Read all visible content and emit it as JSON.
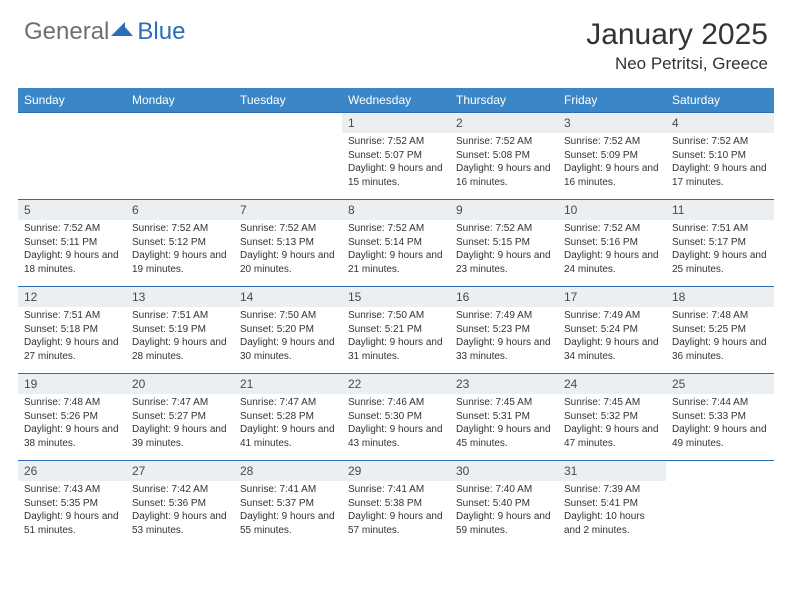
{
  "logo": {
    "part1": "General",
    "part2": "Blue"
  },
  "title": "January 2025",
  "location": "Neo Petritsi, Greece",
  "colors": {
    "header_bg": "#3b86c7",
    "row_border": "#2a6db8",
    "daynum_bg": "#eceff1",
    "text": "#333333",
    "logo_gray": "#6f6f6f",
    "logo_blue": "#2a6db8"
  },
  "days_of_week": [
    "Sunday",
    "Monday",
    "Tuesday",
    "Wednesday",
    "Thursday",
    "Friday",
    "Saturday"
  ],
  "weeks": [
    [
      null,
      null,
      null,
      {
        "n": "1",
        "sr": "7:52 AM",
        "ss": "5:07 PM",
        "dl": "9 hours and 15 minutes."
      },
      {
        "n": "2",
        "sr": "7:52 AM",
        "ss": "5:08 PM",
        "dl": "9 hours and 16 minutes."
      },
      {
        "n": "3",
        "sr": "7:52 AM",
        "ss": "5:09 PM",
        "dl": "9 hours and 16 minutes."
      },
      {
        "n": "4",
        "sr": "7:52 AM",
        "ss": "5:10 PM",
        "dl": "9 hours and 17 minutes."
      }
    ],
    [
      {
        "n": "5",
        "sr": "7:52 AM",
        "ss": "5:11 PM",
        "dl": "9 hours and 18 minutes."
      },
      {
        "n": "6",
        "sr": "7:52 AM",
        "ss": "5:12 PM",
        "dl": "9 hours and 19 minutes."
      },
      {
        "n": "7",
        "sr": "7:52 AM",
        "ss": "5:13 PM",
        "dl": "9 hours and 20 minutes."
      },
      {
        "n": "8",
        "sr": "7:52 AM",
        "ss": "5:14 PM",
        "dl": "9 hours and 21 minutes."
      },
      {
        "n": "9",
        "sr": "7:52 AM",
        "ss": "5:15 PM",
        "dl": "9 hours and 23 minutes."
      },
      {
        "n": "10",
        "sr": "7:52 AM",
        "ss": "5:16 PM",
        "dl": "9 hours and 24 minutes."
      },
      {
        "n": "11",
        "sr": "7:51 AM",
        "ss": "5:17 PM",
        "dl": "9 hours and 25 minutes."
      }
    ],
    [
      {
        "n": "12",
        "sr": "7:51 AM",
        "ss": "5:18 PM",
        "dl": "9 hours and 27 minutes."
      },
      {
        "n": "13",
        "sr": "7:51 AM",
        "ss": "5:19 PM",
        "dl": "9 hours and 28 minutes."
      },
      {
        "n": "14",
        "sr": "7:50 AM",
        "ss": "5:20 PM",
        "dl": "9 hours and 30 minutes."
      },
      {
        "n": "15",
        "sr": "7:50 AM",
        "ss": "5:21 PM",
        "dl": "9 hours and 31 minutes."
      },
      {
        "n": "16",
        "sr": "7:49 AM",
        "ss": "5:23 PM",
        "dl": "9 hours and 33 minutes."
      },
      {
        "n": "17",
        "sr": "7:49 AM",
        "ss": "5:24 PM",
        "dl": "9 hours and 34 minutes."
      },
      {
        "n": "18",
        "sr": "7:48 AM",
        "ss": "5:25 PM",
        "dl": "9 hours and 36 minutes."
      }
    ],
    [
      {
        "n": "19",
        "sr": "7:48 AM",
        "ss": "5:26 PM",
        "dl": "9 hours and 38 minutes."
      },
      {
        "n": "20",
        "sr": "7:47 AM",
        "ss": "5:27 PM",
        "dl": "9 hours and 39 minutes."
      },
      {
        "n": "21",
        "sr": "7:47 AM",
        "ss": "5:28 PM",
        "dl": "9 hours and 41 minutes."
      },
      {
        "n": "22",
        "sr": "7:46 AM",
        "ss": "5:30 PM",
        "dl": "9 hours and 43 minutes."
      },
      {
        "n": "23",
        "sr": "7:45 AM",
        "ss": "5:31 PM",
        "dl": "9 hours and 45 minutes."
      },
      {
        "n": "24",
        "sr": "7:45 AM",
        "ss": "5:32 PM",
        "dl": "9 hours and 47 minutes."
      },
      {
        "n": "25",
        "sr": "7:44 AM",
        "ss": "5:33 PM",
        "dl": "9 hours and 49 minutes."
      }
    ],
    [
      {
        "n": "26",
        "sr": "7:43 AM",
        "ss": "5:35 PM",
        "dl": "9 hours and 51 minutes."
      },
      {
        "n": "27",
        "sr": "7:42 AM",
        "ss": "5:36 PM",
        "dl": "9 hours and 53 minutes."
      },
      {
        "n": "28",
        "sr": "7:41 AM",
        "ss": "5:37 PM",
        "dl": "9 hours and 55 minutes."
      },
      {
        "n": "29",
        "sr": "7:41 AM",
        "ss": "5:38 PM",
        "dl": "9 hours and 57 minutes."
      },
      {
        "n": "30",
        "sr": "7:40 AM",
        "ss": "5:40 PM",
        "dl": "9 hours and 59 minutes."
      },
      {
        "n": "31",
        "sr": "7:39 AM",
        "ss": "5:41 PM",
        "dl": "10 hours and 2 minutes."
      },
      null
    ]
  ],
  "labels": {
    "sunrise": "Sunrise:",
    "sunset": "Sunset:",
    "daylight": "Daylight:"
  }
}
